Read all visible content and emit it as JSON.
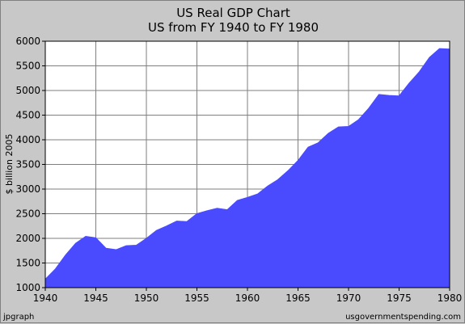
{
  "chart_data": {
    "type": "area",
    "title": "US Real GDP Chart",
    "subtitle": "US from FY 1940 to FY 1980",
    "xlabel": "",
    "ylabel": "$ billion 2005",
    "xlim": [
      1940,
      1980
    ],
    "ylim": [
      1000,
      6000
    ],
    "xticks": [
      1940,
      1945,
      1950,
      1955,
      1960,
      1965,
      1970,
      1975,
      1980
    ],
    "yticks": [
      1000,
      1500,
      2000,
      2500,
      3000,
      3500,
      4000,
      4500,
      5000,
      5500,
      6000
    ],
    "grid": true,
    "fill_color": "#4a4aff",
    "x": [
      1940,
      1941,
      1942,
      1943,
      1944,
      1945,
      1946,
      1947,
      1948,
      1949,
      1950,
      1951,
      1952,
      1953,
      1954,
      1955,
      1956,
      1957,
      1958,
      1959,
      1960,
      1961,
      1962,
      1963,
      1964,
      1965,
      1966,
      1967,
      1968,
      1969,
      1970,
      1971,
      1972,
      1973,
      1974,
      1975,
      1976,
      1977,
      1978,
      1979,
      1980
    ],
    "values": [
      1170,
      1380,
      1660,
      1900,
      2040,
      2010,
      1800,
      1770,
      1850,
      1860,
      2000,
      2160,
      2250,
      2350,
      2340,
      2500,
      2560,
      2610,
      2580,
      2770,
      2830,
      2900,
      3060,
      3190,
      3370,
      3580,
      3850,
      3940,
      4130,
      4260,
      4270,
      4410,
      4640,
      4920,
      4900,
      4890,
      5150,
      5380,
      5670,
      5850,
      5840
    ]
  },
  "footer": {
    "left": "jpgraph",
    "right": "usgovernmentspending.com"
  }
}
